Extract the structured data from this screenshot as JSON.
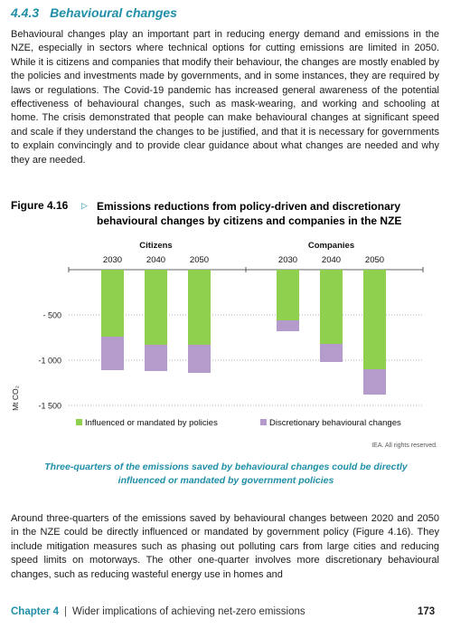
{
  "section": {
    "number": "4.4.3",
    "title": "Behavioural changes"
  },
  "paragraph_1": "Behavioural changes play an important part in reducing energy demand and emissions in the NZE, especially in sectors where technical options for cutting emissions are limited in 2050. While it is citizens and companies that modify their behaviour, the changes are mostly enabled by the policies and investments made by governments, and in some instances, they are required by laws or regulations. The Covid-19 pandemic has increased general awareness of the potential effectiveness of behavioural changes, such as mask-wearing, and working and schooling at home. The crisis demonstrated that people can make behavioural changes at significant speed and scale if they understand the changes to be justified, and that it is necessary for governments to explain convincingly and to provide clear guidance about what changes are needed and why they are needed.",
  "figure": {
    "label": "Figure 4.16",
    "title": "Emissions reductions from policy-driven and discretionary behavioural changes by citizens and companies in the NZE",
    "caption": "Three-quarters of the emissions saved by behavioural changes could be directly influenced or mandated by government policies",
    "rights": "IEA. All rights reserved."
  },
  "chart_data": {
    "type": "bar",
    "stacked": true,
    "ylabel": "Mt CO₂",
    "ylim": [
      -1500,
      0
    ],
    "yticks": [
      -500,
      -1000,
      -1500
    ],
    "ytick_labels": [
      "- 500",
      "-1 000",
      "-1 500"
    ],
    "grid": "dotted horizontal",
    "legend_position": "bottom",
    "groups": [
      {
        "name": "Citizens",
        "categories": [
          "2030",
          "2040",
          "2050"
        ]
      },
      {
        "name": "Companies",
        "categories": [
          "2030",
          "2040",
          "2050"
        ]
      }
    ],
    "series": [
      {
        "name": "Influenced or mandated by policies",
        "color": "#8fd14f",
        "values": [
          -740,
          -830,
          -830,
          -560,
          -820,
          -1100
        ]
      },
      {
        "name": "Discretionary behavioural changes",
        "color": "#b49bcc",
        "values": [
          -370,
          -290,
          -310,
          -120,
          -200,
          -280
        ]
      }
    ]
  },
  "paragraph_2": "Around three-quarters of the emissions saved by behavioural changes between 2020 and 2050 in the NZE could be directly influenced or mandated by government policy (Figure 4.16). They include mitigation measures such as phasing out polluting cars from large cities and reducing speed limits on motorways. The other one-quarter involves more discretionary behavioural changes, such as reducing wasteful energy use in homes and",
  "footer": {
    "chapter": "Chapter 4",
    "separator": "|",
    "title": "Wider implications of achieving net-zero emissions",
    "page": "173"
  }
}
